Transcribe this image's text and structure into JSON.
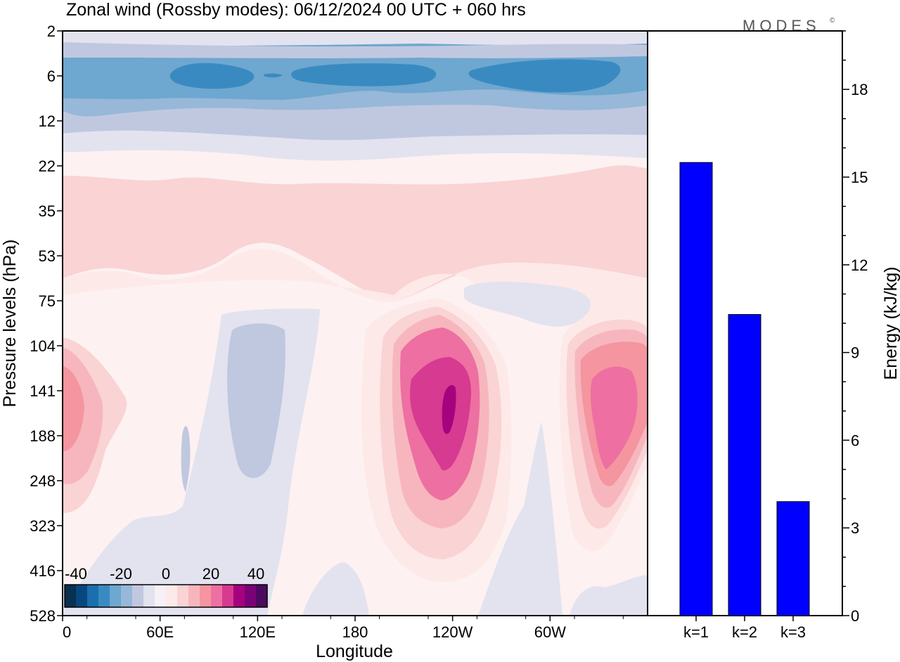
{
  "title": "Zonal wind (Rossby modes):  06/12/2024  00 UTC  + 060 hrs",
  "brand": "MODES",
  "brand_mark": "©",
  "colors": {
    "bar_fill": "#0000ff",
    "frame": "#000000",
    "scale": [
      "#08304f",
      "#08477e",
      "#1a6fae",
      "#3a8ac2",
      "#6ea7cf",
      "#97b8d8",
      "#c0c8e0",
      "#e2e3ef",
      "#f7f0f6",
      "#fde9e8",
      "#fad3d4",
      "#f7b6bd",
      "#f4959f",
      "#ee6fa1",
      "#d63a91",
      "#a7027e",
      "#7a0177",
      "#4b0a60"
    ]
  },
  "chart_data": [
    {
      "type": "heatmap",
      "title": "Zonal wind (Rossby modes):  06/12/2024  00 UTC  + 060 hrs",
      "xlabel": "Longitude",
      "ylabel": "Pressure levels (hPa)",
      "x_ticks": [
        "0",
        "60E",
        "120E",
        "180",
        "120W",
        "60W"
      ],
      "y_ticks": [
        "2",
        "6",
        "12",
        "22",
        "35",
        "53",
        "75",
        "104",
        "141",
        "188",
        "248",
        "323",
        "416",
        "528"
      ],
      "colorbar": {
        "ticks": [
          "-40",
          "-20",
          "0",
          "20",
          "40"
        ],
        "range": [
          -45,
          45
        ]
      },
      "features": [
        {
          "lon": 40,
          "level": "6",
          "value": -28
        },
        {
          "lon": 290,
          "level": "6",
          "value": -28
        },
        {
          "lon": 0,
          "level": "141",
          "value": 15
        },
        {
          "lon": 240,
          "level": "141",
          "value": 38
        },
        {
          "lon": 330,
          "level": "141",
          "value": 25
        },
        {
          "lon": 120,
          "level": "141",
          "value": -8
        }
      ]
    },
    {
      "type": "bar",
      "categories": [
        "k=1",
        "k=2",
        "k=3"
      ],
      "values": [
        15.5,
        10.3,
        3.9
      ],
      "ylabel": "Energy (kJ/kg)",
      "ylim": [
        0,
        20
      ],
      "y_ticks": [
        0,
        3,
        6,
        9,
        12,
        15,
        18
      ]
    }
  ]
}
